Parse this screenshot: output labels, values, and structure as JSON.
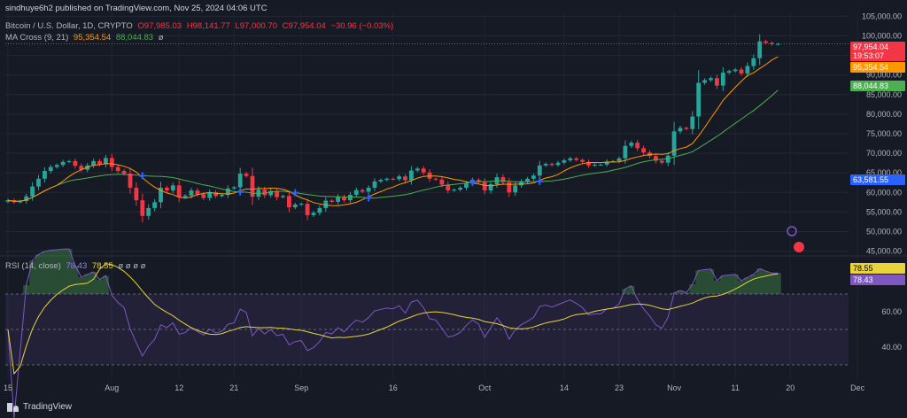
{
  "published": "sindhuye6h2 published on TradingView.com, Nov 25, 2024 04:06 UTC",
  "symbol": {
    "name": "Bitcoin / U.S. Dollar, 1D, CRYPTO",
    "open": "O97,985.03",
    "high": "H98,141.77",
    "low": "L97,000.70",
    "close": "C97,954.04",
    "change": "−30.96 (−0.03%)"
  },
  "ma_cross": {
    "label": "MA Cross (9, 21)",
    "fast": "95,354.54",
    "slow": "88,044.83",
    "extra": "ø"
  },
  "rsi": {
    "label": "RSI (14, close)",
    "value": "78.43",
    "ma": "78.55",
    "extras": "ø ø ø ø"
  },
  "price_tags": {
    "last": "97,954.04",
    "countdown": "19:53:07",
    "fast_ma": "95,354.54",
    "slow_ma": "88,044.83",
    "marker": "63,581.55",
    "rsi_ma": "78.55",
    "rsi": "78.43"
  },
  "footer": {
    "brand": "TradingView"
  },
  "colors": {
    "up": "#26a69a",
    "down": "#f23645",
    "fast_ma": "#ff9800",
    "slow_ma": "#4caf50",
    "rsi": "#7e57c2",
    "rsi_ma": "#e9d33a"
  },
  "chart_data": {
    "type": "candlestick",
    "price_axis_ticks": [
      "105,000.00",
      "100,000.00",
      "95,000.00",
      "90,000.00",
      "85,000.00",
      "80,000.00",
      "75,000.00",
      "70,000.00",
      "65,000.00",
      "60,000.00",
      "55,000.00",
      "50,000.00",
      "45,000.00"
    ],
    "price_ticks_values": [
      105000,
      100000,
      95000,
      90000,
      85000,
      80000,
      75000,
      70000,
      65000,
      60000,
      55000,
      50000,
      45000
    ],
    "ylim": [
      44000,
      106000
    ],
    "rsi_axis_ticks": [
      "60.00",
      "40.00"
    ],
    "rsi_ticks_values": [
      60,
      40
    ],
    "rsi_ylim": [
      22,
      90
    ],
    "rsi_bands": [
      70,
      50,
      30
    ],
    "x_ticks": [
      {
        "label": "15",
        "day": 0
      },
      {
        "label": "Aug",
        "day": 17
      },
      {
        "label": "12",
        "day": 28
      },
      {
        "label": "21",
        "day": 37
      },
      {
        "label": "Sep",
        "day": 48
      },
      {
        "label": "16",
        "day": 63
      },
      {
        "label": "Oct",
        "day": 78
      },
      {
        "label": "14",
        "day": 91
      },
      {
        "label": "23",
        "day": 100
      },
      {
        "label": "Nov",
        "day": 109
      },
      {
        "label": "11",
        "day": 119
      },
      {
        "label": "20",
        "day": 128
      },
      {
        "label": "Dec",
        "day": 139
      }
    ],
    "close": [
      58000,
      57500,
      57800,
      59000,
      61500,
      63500,
      65500,
      66500,
      67000,
      67800,
      68000,
      66800,
      65800,
      66900,
      68000,
      67200,
      68800,
      66500,
      65500,
      64800,
      61200,
      58000,
      54000,
      56000,
      57500,
      61200,
      60500,
      61800,
      58800,
      59200,
      60500,
      59500,
      58600,
      60000,
      59100,
      59400,
      61000,
      61300,
      64800,
      64200,
      58900,
      60700,
      59300,
      60400,
      58800,
      59100,
      56200,
      56900,
      57100,
      54200,
      54800,
      56000,
      57900,
      57600,
      58900,
      58000,
      59400,
      60600,
      60200,
      61200,
      62800,
      63200,
      63500,
      63400,
      64100,
      63100,
      65600,
      66100,
      65100,
      63500,
      63300,
      62000,
      60500,
      60700,
      61200,
      62300,
      63200,
      62600,
      60500,
      62100,
      63900,
      62600,
      60000,
      61800,
      62800,
      63500,
      64300,
      66900,
      67300,
      67000,
      67600,
      68200,
      68700,
      68300,
      67800,
      66900,
      67100,
      67100,
      67900,
      68000,
      68700,
      71900,
      72700,
      71300,
      70200,
      69300,
      68100,
      67600,
      69400,
      75600,
      76500,
      76200,
      79400,
      88000,
      88700,
      89200,
      87300,
      90600,
      91000,
      91400,
      90400,
      92300,
      94300,
      98600,
      98200,
      97900,
      97954
    ]
  }
}
